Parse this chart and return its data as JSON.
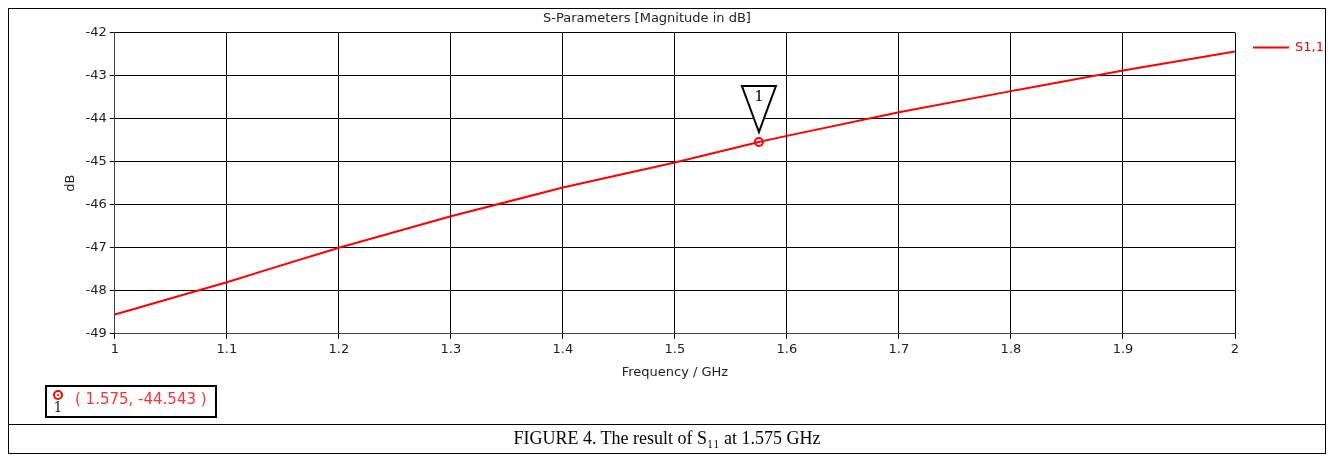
{
  "chart_data": {
    "type": "line",
    "title": "S-Parameters [Magnitude in dB]",
    "xlabel": "Frequency / GHz",
    "ylabel": "dB",
    "x": [
      1,
      1.1,
      1.2,
      1.3,
      1.4,
      1.5,
      1.575,
      1.6,
      1.7,
      1.8,
      1.9,
      2
    ],
    "series": [
      {
        "name": "S1,1",
        "color": "#ff0000",
        "values": [
          -48.55,
          -47.8,
          -47.0,
          -46.27,
          -45.6,
          -45.02,
          -44.543,
          -44.4,
          -43.85,
          -43.36,
          -42.88,
          -42.44
        ]
      },
      {
        "type": "scatter",
        "color": "#ff0000",
        "marker": "circle",
        "x": [
          1.575
        ],
        "values": [
          -44.543
        ]
      }
    ],
    "xlim": [
      1,
      2
    ],
    "xticks": [
      1,
      1.1,
      1.2,
      1.3,
      1.4,
      1.5,
      1.6,
      1.7,
      1.8,
      1.9,
      2
    ],
    "ylim": [
      -49,
      -42
    ],
    "yticks": [
      -49,
      -48,
      -47,
      -46,
      -45,
      -44,
      -43,
      -42
    ],
    "grid": true,
    "legend": "right",
    "marker": "none",
    "line_style": "solid",
    "annotations": [
      {
        "text": "1",
        "x": 1.575,
        "y": -44.543
      },
      "1",
      "( 1.575, -44.543 )",
      "FIGURE 4. The result of S₁₁ at 1.575 GHz"
    ]
  }
}
